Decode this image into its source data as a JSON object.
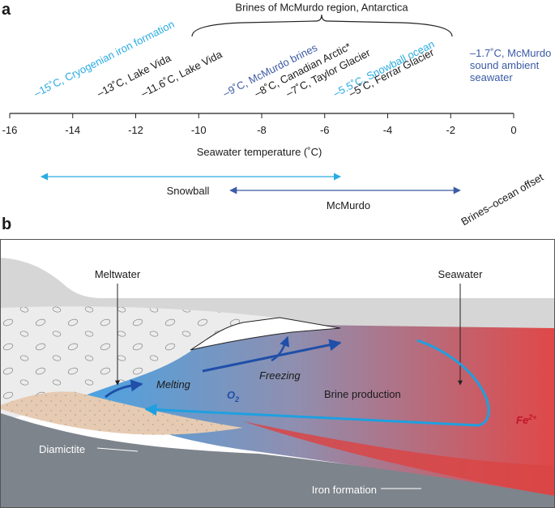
{
  "panel_labels": [
    "a",
    "b"
  ],
  "panel_a": {
    "title": "Brines of McMurdo region, Antarctica",
    "xlabel": "Seawater temperature (˚C)",
    "xlim": [
      -16,
      0
    ],
    "xticks": [
      -16,
      -14,
      -12,
      -10,
      -8,
      -6,
      -4,
      -2,
      0
    ],
    "annotations": [
      {
        "label": "–15˚C, Cryogenian iron formation",
        "x": -15,
        "color": "#29abe2"
      },
      {
        "label": "–13˚C, Lake Vida",
        "x": -13,
        "color": "#1a1a1a"
      },
      {
        "label": "–11.6˚C, Lake Vida",
        "x": -11.6,
        "color": "#1a1a1a"
      },
      {
        "label": "–9˚C, McMurdo brines",
        "x": -9,
        "color": "#3b5ba5"
      },
      {
        "label": "–8˚C, Canadian Arctic*",
        "x": -8,
        "color": "#1a1a1a"
      },
      {
        "label": "–7˚C, Taylor Glacier",
        "x": -7,
        "color": "#1a1a1a"
      },
      {
        "label": "–5.5˚C, Snowball ocean",
        "x": -5.5,
        "color": "#29abe2"
      },
      {
        "label": "–5˚C, Ferrar Glacier",
        "x": -5,
        "color": "#1a1a1a"
      }
    ],
    "ambient": {
      "lines": [
        "–1.7˚C, McMurdo",
        "sound ambient",
        "seawater"
      ],
      "x": -1.7,
      "color": "#3b5ba5"
    },
    "ranges": [
      {
        "name": "Snowball",
        "from": -15,
        "to": -5.5,
        "color": "#29abe2"
      },
      {
        "name": "McMurdo",
        "from": -9,
        "to": -1.7,
        "color": "#3b5ba5"
      }
    ],
    "offset_label": "Brines–ocean offset"
  },
  "panel_b": {
    "labels": {
      "meltwater": "Meltwater",
      "seawater": "Seawater",
      "melting": "Melting",
      "freezing": "Freezing",
      "oxygen": "O",
      "oxygen_sub": "2",
      "brine": "Brine production",
      "iron": "Fe",
      "iron_sup": "2+",
      "diamictite": "Diamictite",
      "iron_formation": "Iron formation"
    }
  }
}
